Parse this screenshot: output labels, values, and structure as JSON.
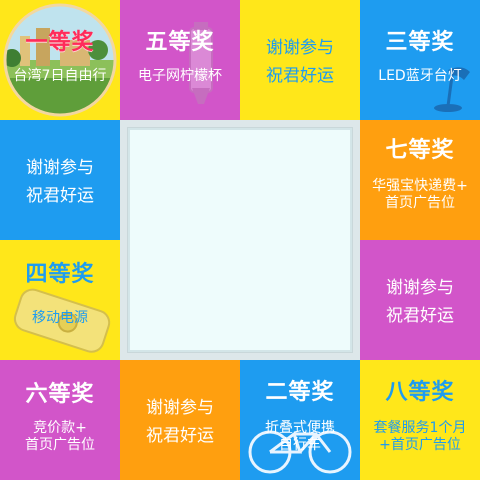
{
  "prizes": {
    "p1": {
      "title": "一等奖",
      "desc": "台湾7日自由行"
    },
    "p5": {
      "title": "五等奖",
      "desc": "电子网柠檬杯"
    },
    "t1": {
      "line1": "谢谢参与",
      "line2": "祝君好运"
    },
    "p3": {
      "title": "三等奖",
      "desc": "LED蓝牙台灯"
    },
    "t2": {
      "line1": "谢谢参与",
      "line2": "祝君好运"
    },
    "p7": {
      "title": "七等奖",
      "desc1": "华强宝快递费+",
      "desc2": "首页广告位"
    },
    "p4": {
      "title": "四等奖",
      "desc": "移动电源"
    },
    "t3": {
      "line1": "谢谢参与",
      "line2": "祝君好运"
    },
    "p6": {
      "title": "六等奖",
      "desc1": "竞价款+",
      "desc2": "首页广告位"
    },
    "t4": {
      "line1": "谢谢参与",
      "line2": "祝君好运"
    },
    "p2": {
      "title": "二等奖",
      "desc1": "折叠式便携",
      "desc2": "自行车"
    },
    "p8": {
      "title": "八等奖",
      "desc1": "套餐服务1个月",
      "desc2": "+首页广告位"
    }
  },
  "colors": {
    "yellow": "#ffe71a",
    "magenta": "#d255c9",
    "blue": "#1e9cf0",
    "orange": "#ff9f0f",
    "red": "#ff2b5a"
  },
  "icons": [
    "travel-photo",
    "lemon-cup-icon",
    "desk-lamp-icon",
    "power-bank-icon",
    "bicycle-icon"
  ]
}
